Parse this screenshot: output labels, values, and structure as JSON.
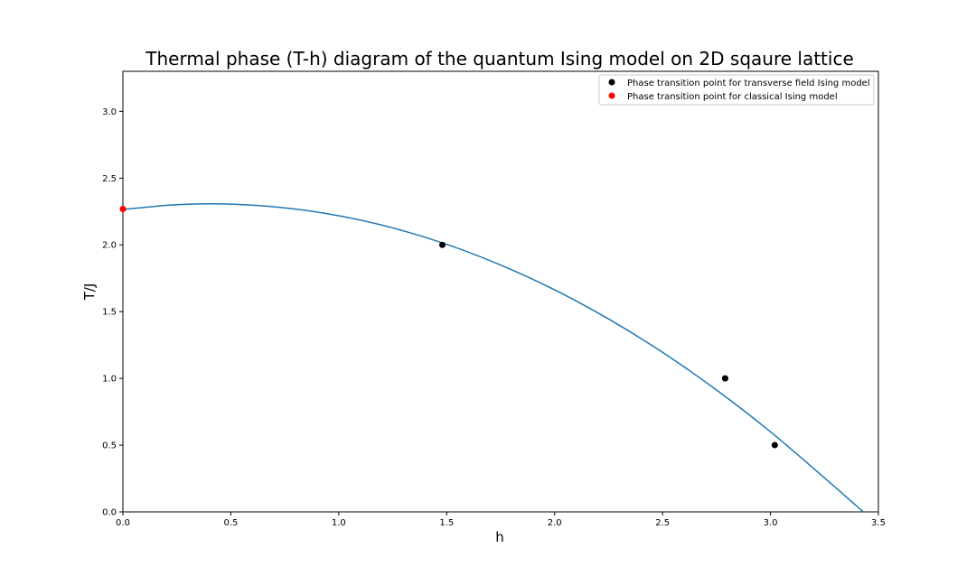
{
  "chart_data": {
    "type": "scatter",
    "title": "Thermal phase (T-h) diagram of the quantum Ising model on 2D sqaure lattice",
    "xlabel": "h",
    "ylabel": "T/J",
    "xlim": [
      0.0,
      3.5
    ],
    "ylim": [
      0.0,
      3.3
    ],
    "xticks": [
      0.0,
      0.5,
      1.0,
      1.5,
      2.0,
      2.5,
      3.0,
      3.5
    ],
    "xtick_labels": [
      "0.0",
      "0.5",
      "1.0",
      "1.5",
      "2.0",
      "2.5",
      "3.0",
      "3.5"
    ],
    "yticks": [
      0.0,
      0.5,
      1.0,
      1.5,
      2.0,
      2.5,
      3.0
    ],
    "ytick_labels": [
      "0.0",
      "0.5",
      "1.0",
      "1.5",
      "2.0",
      "2.5",
      "3.0"
    ],
    "grid": false,
    "legend_position": "top-right",
    "curve": {
      "type": "line",
      "color": "#1f77b4",
      "x": [
        0.0,
        0.25,
        0.5,
        0.75,
        1.0,
        1.25,
        1.5,
        1.75,
        2.0,
        2.25,
        2.5,
        2.75,
        3.0,
        3.25,
        3.43
      ],
      "y": [
        2.265,
        2.301,
        2.305,
        2.277,
        2.218,
        2.127,
        2.004,
        1.849,
        1.663,
        1.445,
        1.195,
        0.913,
        0.6,
        0.255,
        0.0
      ]
    },
    "series": [
      {
        "name": "Phase transition point for transverse field Ising model",
        "color": "#000000",
        "x": [
          1.48,
          2.79,
          3.02
        ],
        "y": [
          2.0,
          1.0,
          0.5
        ]
      },
      {
        "name": "Phase transition point for classical Ising model",
        "color": "#ff0000",
        "x": [
          0.0
        ],
        "y": [
          2.269
        ]
      }
    ]
  }
}
